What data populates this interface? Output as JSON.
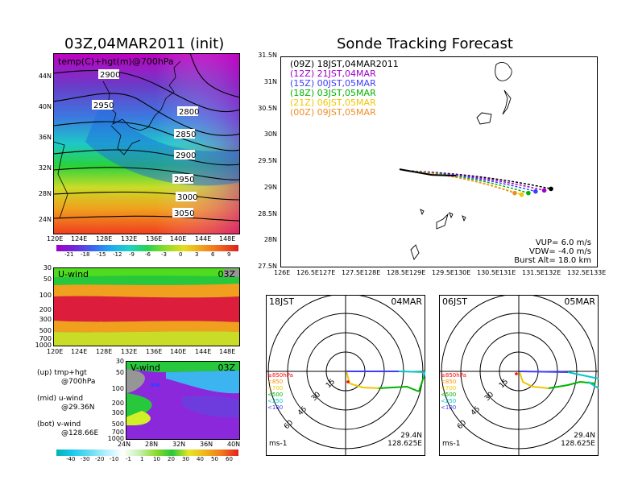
{
  "left_title": "03Z,04MAR2011 (init)",
  "right_title": "Sonde Tracking Forecast",
  "map_panel": {
    "label": "temp(C)+hgt(m)@700hPa",
    "lat_ticks": [
      "44N",
      "40N",
      "36N",
      "32N",
      "28N",
      "24N"
    ],
    "lon_ticks": [
      "120E",
      "124E",
      "128E",
      "132E",
      "136E",
      "140E",
      "144E",
      "148E"
    ],
    "contours": [
      "2900",
      "2950",
      "2800",
      "2850",
      "2900",
      "2950",
      "3000",
      "3050"
    ],
    "colorbar_labels": [
      "-21",
      "-18",
      "-15",
      "-12",
      "-9",
      "-6",
      "-3",
      "0",
      "3",
      "6",
      "9"
    ]
  },
  "u_panel": {
    "label": "U-wind",
    "time": "03Z",
    "p_ticks": [
      "30",
      "50",
      "100",
      "200",
      "300",
      "500",
      "700",
      "1000"
    ],
    "lon_ticks": [
      "120E",
      "124E",
      "128E",
      "132E",
      "136E",
      "140E",
      "144E",
      "148E"
    ]
  },
  "v_panel": {
    "label": "V-wind",
    "time": "03Z",
    "p_ticks": [
      "30",
      "50",
      "100",
      "200",
      "300",
      "500",
      "700",
      "1000"
    ],
    "lat_ticks": [
      "24N",
      "28N",
      "32N",
      "36N",
      "40N"
    ],
    "colorbar_labels": [
      "-40",
      "-30",
      "-20",
      "-10",
      "-1",
      "1",
      "10",
      "20",
      "30",
      "40",
      "50",
      "60"
    ]
  },
  "legend_left": {
    "up": "(up) tmp+hgt",
    "up2": "@700hPa",
    "mid": "(mid) u-wind",
    "mid2": "@29.36N",
    "bot": "(bot) v-wind",
    "bot2": "@128.66E"
  },
  "track_panel": {
    "lat_ticks": [
      "31.5N",
      "31N",
      "30.5N",
      "30N",
      "29.5N",
      "29N",
      "28.5N",
      "28N",
      "27.5N"
    ],
    "lon_ticks": [
      "126E",
      "126.5E",
      "127E",
      "127.5E",
      "128E",
      "128.5E",
      "129E",
      "129.5E",
      "130E",
      "130.5E",
      "131E",
      "131.5E",
      "132E",
      "132.5E",
      "133E"
    ],
    "legend": [
      {
        "text": "(09Z) 18JST,04MAR2011",
        "color": "#000000"
      },
      {
        "text": "(12Z) 21JST,04MAR",
        "color": "#a000c8"
      },
      {
        "text": "(15Z) 00JST,05MAR",
        "color": "#3c3cff"
      },
      {
        "text": "(18Z) 03JST,05MAR",
        "color": "#00b400"
      },
      {
        "text": "(21Z) 06JST,05MAR",
        "color": "#f0c800"
      },
      {
        "text": "(00Z) 09JST,05MAR",
        "color": "#f08c28"
      }
    ],
    "params": {
      "vup": "VUP=  6.0  m/s",
      "vdw": "VDW= -4.0  m/s",
      "burst": "Burst Alt= 18.0  km"
    }
  },
  "hodo_left": {
    "time": "18JST",
    "date": "04MAR",
    "lat": "29.4N",
    "lon": "128.625E",
    "unit": "ms-1",
    "rings": [
      "15",
      "30",
      "45",
      "60"
    ],
    "levels": [
      {
        "t": "≥850hPa",
        "c": "#ff0000"
      },
      {
        "t": "<850",
        "c": "#ff8c00"
      },
      {
        "t": "<700",
        "c": "#f0c800"
      },
      {
        "t": "<500",
        "c": "#00b400"
      },
      {
        "t": "<250",
        "c": "#00c8c8"
      },
      {
        "t": "<100",
        "c": "#3c3cff"
      }
    ]
  },
  "hodo_right": {
    "time": "06JST",
    "date": "05MAR",
    "lat": "29.4N",
    "lon": "128.625E",
    "unit": "ms-1",
    "rings": [
      "15",
      "30",
      "45",
      "60"
    ],
    "levels": [
      {
        "t": "≥850hPa",
        "c": "#ff0000"
      },
      {
        "t": "<850",
        "c": "#ff8c00"
      },
      {
        "t": "<700",
        "c": "#f0c800"
      },
      {
        "t": "<500",
        "c": "#00b400"
      },
      {
        "t": "<250",
        "c": "#00c8c8"
      },
      {
        "t": "<100",
        "c": "#3c3cff"
      }
    ]
  },
  "chart_data": {
    "type": "line",
    "title": "Sonde Tracking Forecast",
    "xlabel": "",
    "ylabel": "",
    "xlim": [
      126,
      133
    ],
    "ylim": [
      27.5,
      31.5
    ],
    "launch": {
      "lon": 128.63,
      "lat": 29.36
    },
    "series": [
      {
        "name": "(09Z) 18JST,04MAR2011",
        "end_lon": 131.97,
        "end_lat": 28.99
      },
      {
        "name": "(12Z) 21JST,04MAR",
        "end_lon": 131.82,
        "end_lat": 28.96
      },
      {
        "name": "(15Z) 00JST,05MAR",
        "end_lon": 131.63,
        "end_lat": 28.94
      },
      {
        "name": "(18Z) 03JST,05MAR",
        "end_lon": 131.47,
        "end_lat": 28.91
      },
      {
        "name": "(21Z) 06JST,05MAR",
        "end_lon": 131.32,
        "end_lat": 28.88
      },
      {
        "name": "(00Z) 09JST,05MAR",
        "end_lon": 131.17,
        "end_lat": 28.91
      }
    ]
  }
}
